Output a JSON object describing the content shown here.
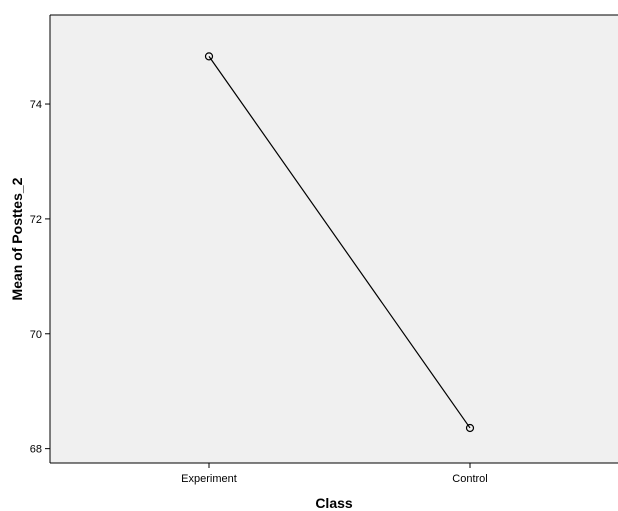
{
  "chart_data": {
    "type": "line",
    "title": "",
    "xlabel": "Class",
    "ylabel": "Mean of Posttes_2",
    "categories": [
      "Experiment",
      "Control"
    ],
    "series": [
      {
        "values": [
          74.83,
          68.36
        ]
      }
    ],
    "ylim": [
      67.75,
      75.55
    ],
    "yticks": [
      68,
      70,
      72,
      74
    ],
    "grid": false,
    "legend": "none",
    "marker": "open-circle",
    "colors": {
      "plot_background": "#f0f0f0",
      "line": "#000000",
      "axis": "#000000"
    }
  }
}
